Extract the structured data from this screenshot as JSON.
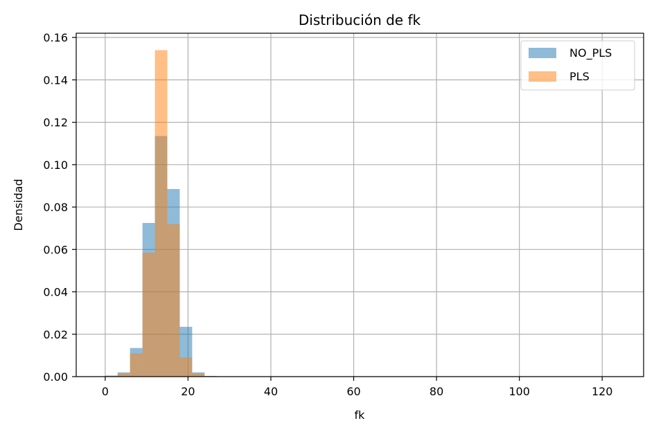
{
  "chart_data": {
    "type": "histogram",
    "title": "Distribución de fk",
    "xlabel": "fk",
    "ylabel": "Densidad",
    "xlim": [
      -7,
      130
    ],
    "ylim": [
      0,
      0.162
    ],
    "xticks": [
      0,
      20,
      40,
      60,
      80,
      100,
      120
    ],
    "yticks": [
      0.0,
      0.02,
      0.04,
      0.06,
      0.08,
      0.1,
      0.12,
      0.14,
      0.16
    ],
    "ytick_labels": [
      "0.00",
      "0.02",
      "0.04",
      "0.06",
      "0.08",
      "0.10",
      "0.12",
      "0.14",
      "0.16"
    ],
    "grid": true,
    "legend_position": "top-right",
    "series": [
      {
        "name": "NO_PLS",
        "color": "#1f77b4",
        "alpha": 0.5,
        "bin_edges": [
          0,
          3,
          6,
          9,
          12,
          15,
          18,
          21,
          24,
          27
        ],
        "values": [
          0.0005,
          0.002,
          0.0135,
          0.0725,
          0.1135,
          0.0885,
          0.0235,
          0.002,
          0.0003
        ]
      },
      {
        "name": "PLS",
        "color": "#ff7f0e",
        "alpha": 0.5,
        "bin_edges": [
          0,
          3,
          6,
          9,
          12,
          15,
          18,
          21,
          24,
          27
        ],
        "values": [
          0,
          0.0015,
          0.011,
          0.0585,
          0.154,
          0.072,
          0.009,
          0.0015,
          0
        ]
      }
    ]
  }
}
